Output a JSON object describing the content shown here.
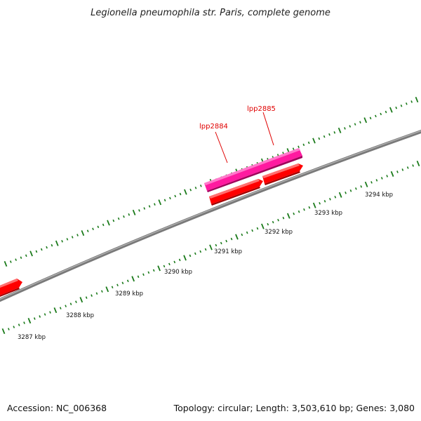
{
  "title": "Legionella pneumophila str. Paris, complete genome",
  "footer": {
    "accession": "Accession: NC_006368",
    "summary": "Topology: circular; Length: 3,503,610 bp; Genes: 3,080"
  },
  "scale_labels": [
    "3287 kbp",
    "3288 kbp",
    "3289 kbp",
    "3290 kbp",
    "3291 kbp",
    "3292 kbp",
    "3293 kbp",
    "3294 kbp"
  ],
  "gene_labels": [
    "lpp2884",
    "lpp2885"
  ],
  "colors": {
    "backbone": "#808080",
    "tick": "#1a7a1a",
    "forward_gene": "#ff1aa0",
    "reverse_gene": "#ff0000",
    "label": "#e00000"
  }
}
